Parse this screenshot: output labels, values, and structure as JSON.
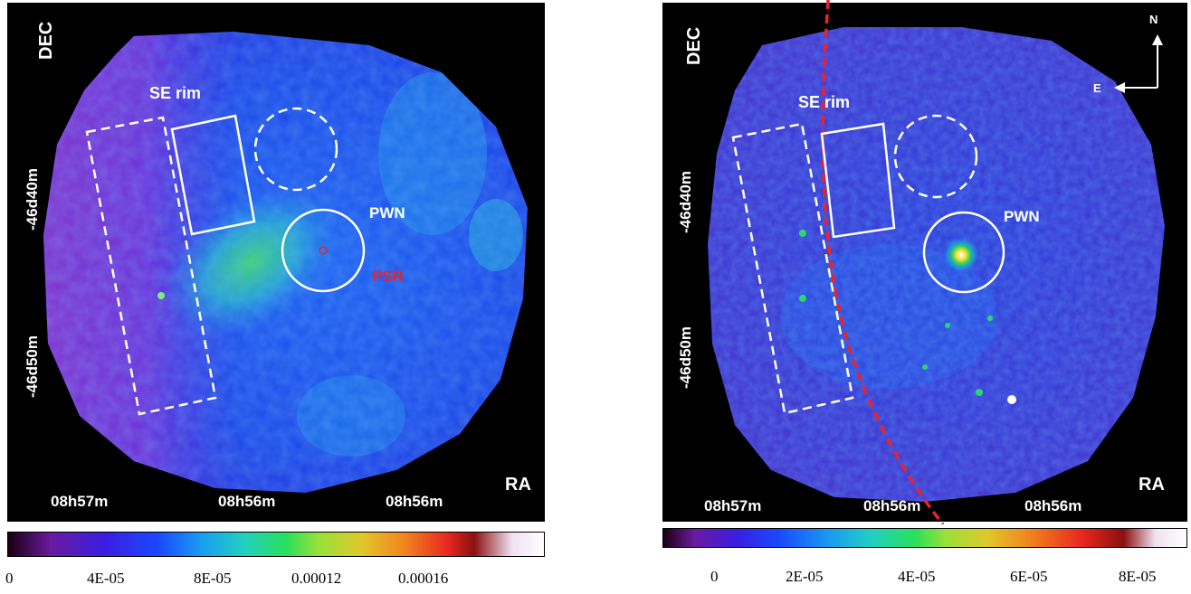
{
  "panels": [
    {
      "id": "left",
      "labels": {
        "dec": "DEC",
        "ra": "RA",
        "se_rim": "SE rim",
        "pwn": "PWN",
        "psr": "PSR",
        "dec_ticks": [
          "-46d40m",
          "-46d50m"
        ],
        "ra_ticks": [
          "08h57m",
          "08h56m",
          "08h56m"
        ]
      },
      "colorbar": {
        "tick_labels": [
          "0",
          "4E-05",
          "8E-05",
          "0.00012",
          "0.00016"
        ]
      }
    },
    {
      "id": "right",
      "labels": {
        "dec": "DEC",
        "ra": "RA",
        "se_rim": "SE rim",
        "pwn": "PWN",
        "north": "N",
        "east": "E",
        "dec_ticks": [
          "-46d40m",
          "-46d50m"
        ],
        "ra_ticks": [
          "08h57m",
          "08h56m",
          "08h56m"
        ]
      },
      "colorbar": {
        "tick_labels": [
          "0",
          "2E-05",
          "4E-05",
          "6E-05",
          "8E-05"
        ]
      }
    }
  ],
  "colors": {
    "region_white": "#ffffff",
    "psr_red": "#e8242a",
    "curve_red": "#e8242a",
    "background": "#000000"
  }
}
